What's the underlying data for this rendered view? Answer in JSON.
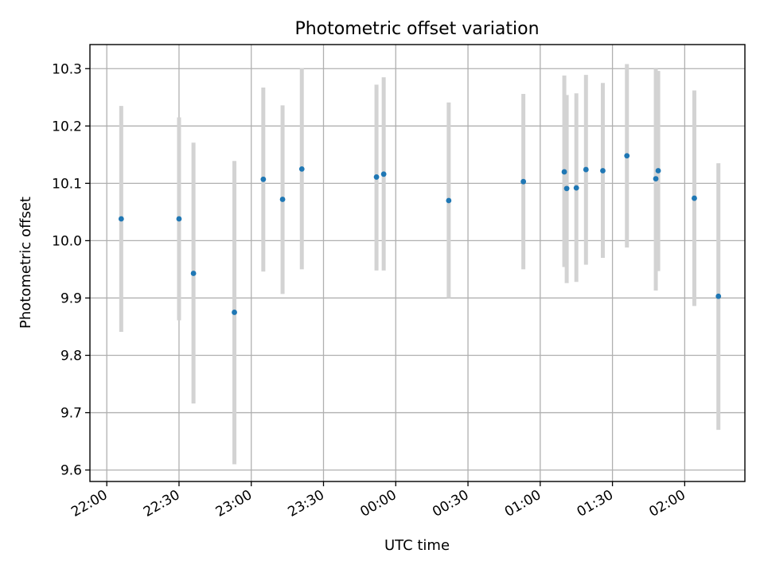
{
  "chart_data": {
    "type": "scatter",
    "title": "Photometric offset variation",
    "xlabel": "UTC time",
    "ylabel": "Photometric offset",
    "x_axis": "time",
    "xlim": [
      "21:53",
      "02:25"
    ],
    "ylim": [
      9.58,
      10.342
    ],
    "x_ticks": [
      {
        "time": "22:00",
        "label": "22:00"
      },
      {
        "time": "22:30",
        "label": "22:30"
      },
      {
        "time": "23:00",
        "label": "23:00"
      },
      {
        "time": "23:30",
        "label": "23:30"
      },
      {
        "time": "00:00",
        "label": "00:00"
      },
      {
        "time": "00:30",
        "label": "00:30"
      },
      {
        "time": "01:00",
        "label": "01:00"
      },
      {
        "time": "01:30",
        "label": "01:30"
      },
      {
        "time": "02:00",
        "label": "02:00"
      }
    ],
    "y_ticks": [
      9.6,
      9.7,
      9.8,
      9.9,
      10.0,
      10.1,
      10.2,
      10.3
    ],
    "y_tick_labels": [
      "9.6",
      "9.7",
      "9.8",
      "9.9",
      "10.0",
      "10.1",
      "10.2",
      "10.3"
    ],
    "grid": true,
    "point_color": "#1f77b4",
    "errorbar_color": "#d3d3d3",
    "points": [
      {
        "time": "22:06",
        "y": 10.038,
        "ymin": 9.841,
        "ymax": 10.235
      },
      {
        "time": "22:30",
        "y": 10.038,
        "ymin": 9.861,
        "ymax": 10.215
      },
      {
        "time": "22:36",
        "y": 9.943,
        "ymin": 9.716,
        "ymax": 10.171
      },
      {
        "time": "22:53",
        "y": 9.875,
        "ymin": 9.61,
        "ymax": 10.139
      },
      {
        "time": "23:05",
        "y": 10.107,
        "ymin": 9.946,
        "ymax": 10.267
      },
      {
        "time": "23:13",
        "y": 10.072,
        "ymin": 9.907,
        "ymax": 10.236
      },
      {
        "time": "23:21",
        "y": 10.125,
        "ymin": 9.95,
        "ymax": 10.301
      },
      {
        "time": "23:52",
        "y": 10.111,
        "ymin": 9.948,
        "ymax": 10.272
      },
      {
        "time": "23:55",
        "y": 10.116,
        "ymin": 9.948,
        "ymax": 10.285
      },
      {
        "time": "00:22",
        "y": 10.07,
        "ymin": 9.9,
        "ymax": 10.241
      },
      {
        "time": "00:53",
        "y": 10.103,
        "ymin": 9.95,
        "ymax": 10.256
      },
      {
        "time": "01:10",
        "y": 10.12,
        "ymin": 9.954,
        "ymax": 10.288
      },
      {
        "time": "01:11",
        "y": 10.091,
        "ymin": 9.926,
        "ymax": 10.254
      },
      {
        "time": "01:15",
        "y": 10.092,
        "ymin": 9.928,
        "ymax": 10.257
      },
      {
        "time": "01:19",
        "y": 10.124,
        "ymin": 9.958,
        "ymax": 10.289
      },
      {
        "time": "01:26",
        "y": 10.122,
        "ymin": 9.97,
        "ymax": 10.275
      },
      {
        "time": "01:36",
        "y": 10.148,
        "ymin": 9.988,
        "ymax": 10.308
      },
      {
        "time": "01:48",
        "y": 10.108,
        "ymin": 9.913,
        "ymax": 10.3
      },
      {
        "time": "01:49",
        "y": 10.122,
        "ymin": 9.947,
        "ymax": 10.296
      },
      {
        "time": "02:04",
        "y": 10.074,
        "ymin": 9.886,
        "ymax": 10.262
      },
      {
        "time": "02:14",
        "y": 9.903,
        "ymin": 9.67,
        "ymax": 10.135
      }
    ]
  }
}
